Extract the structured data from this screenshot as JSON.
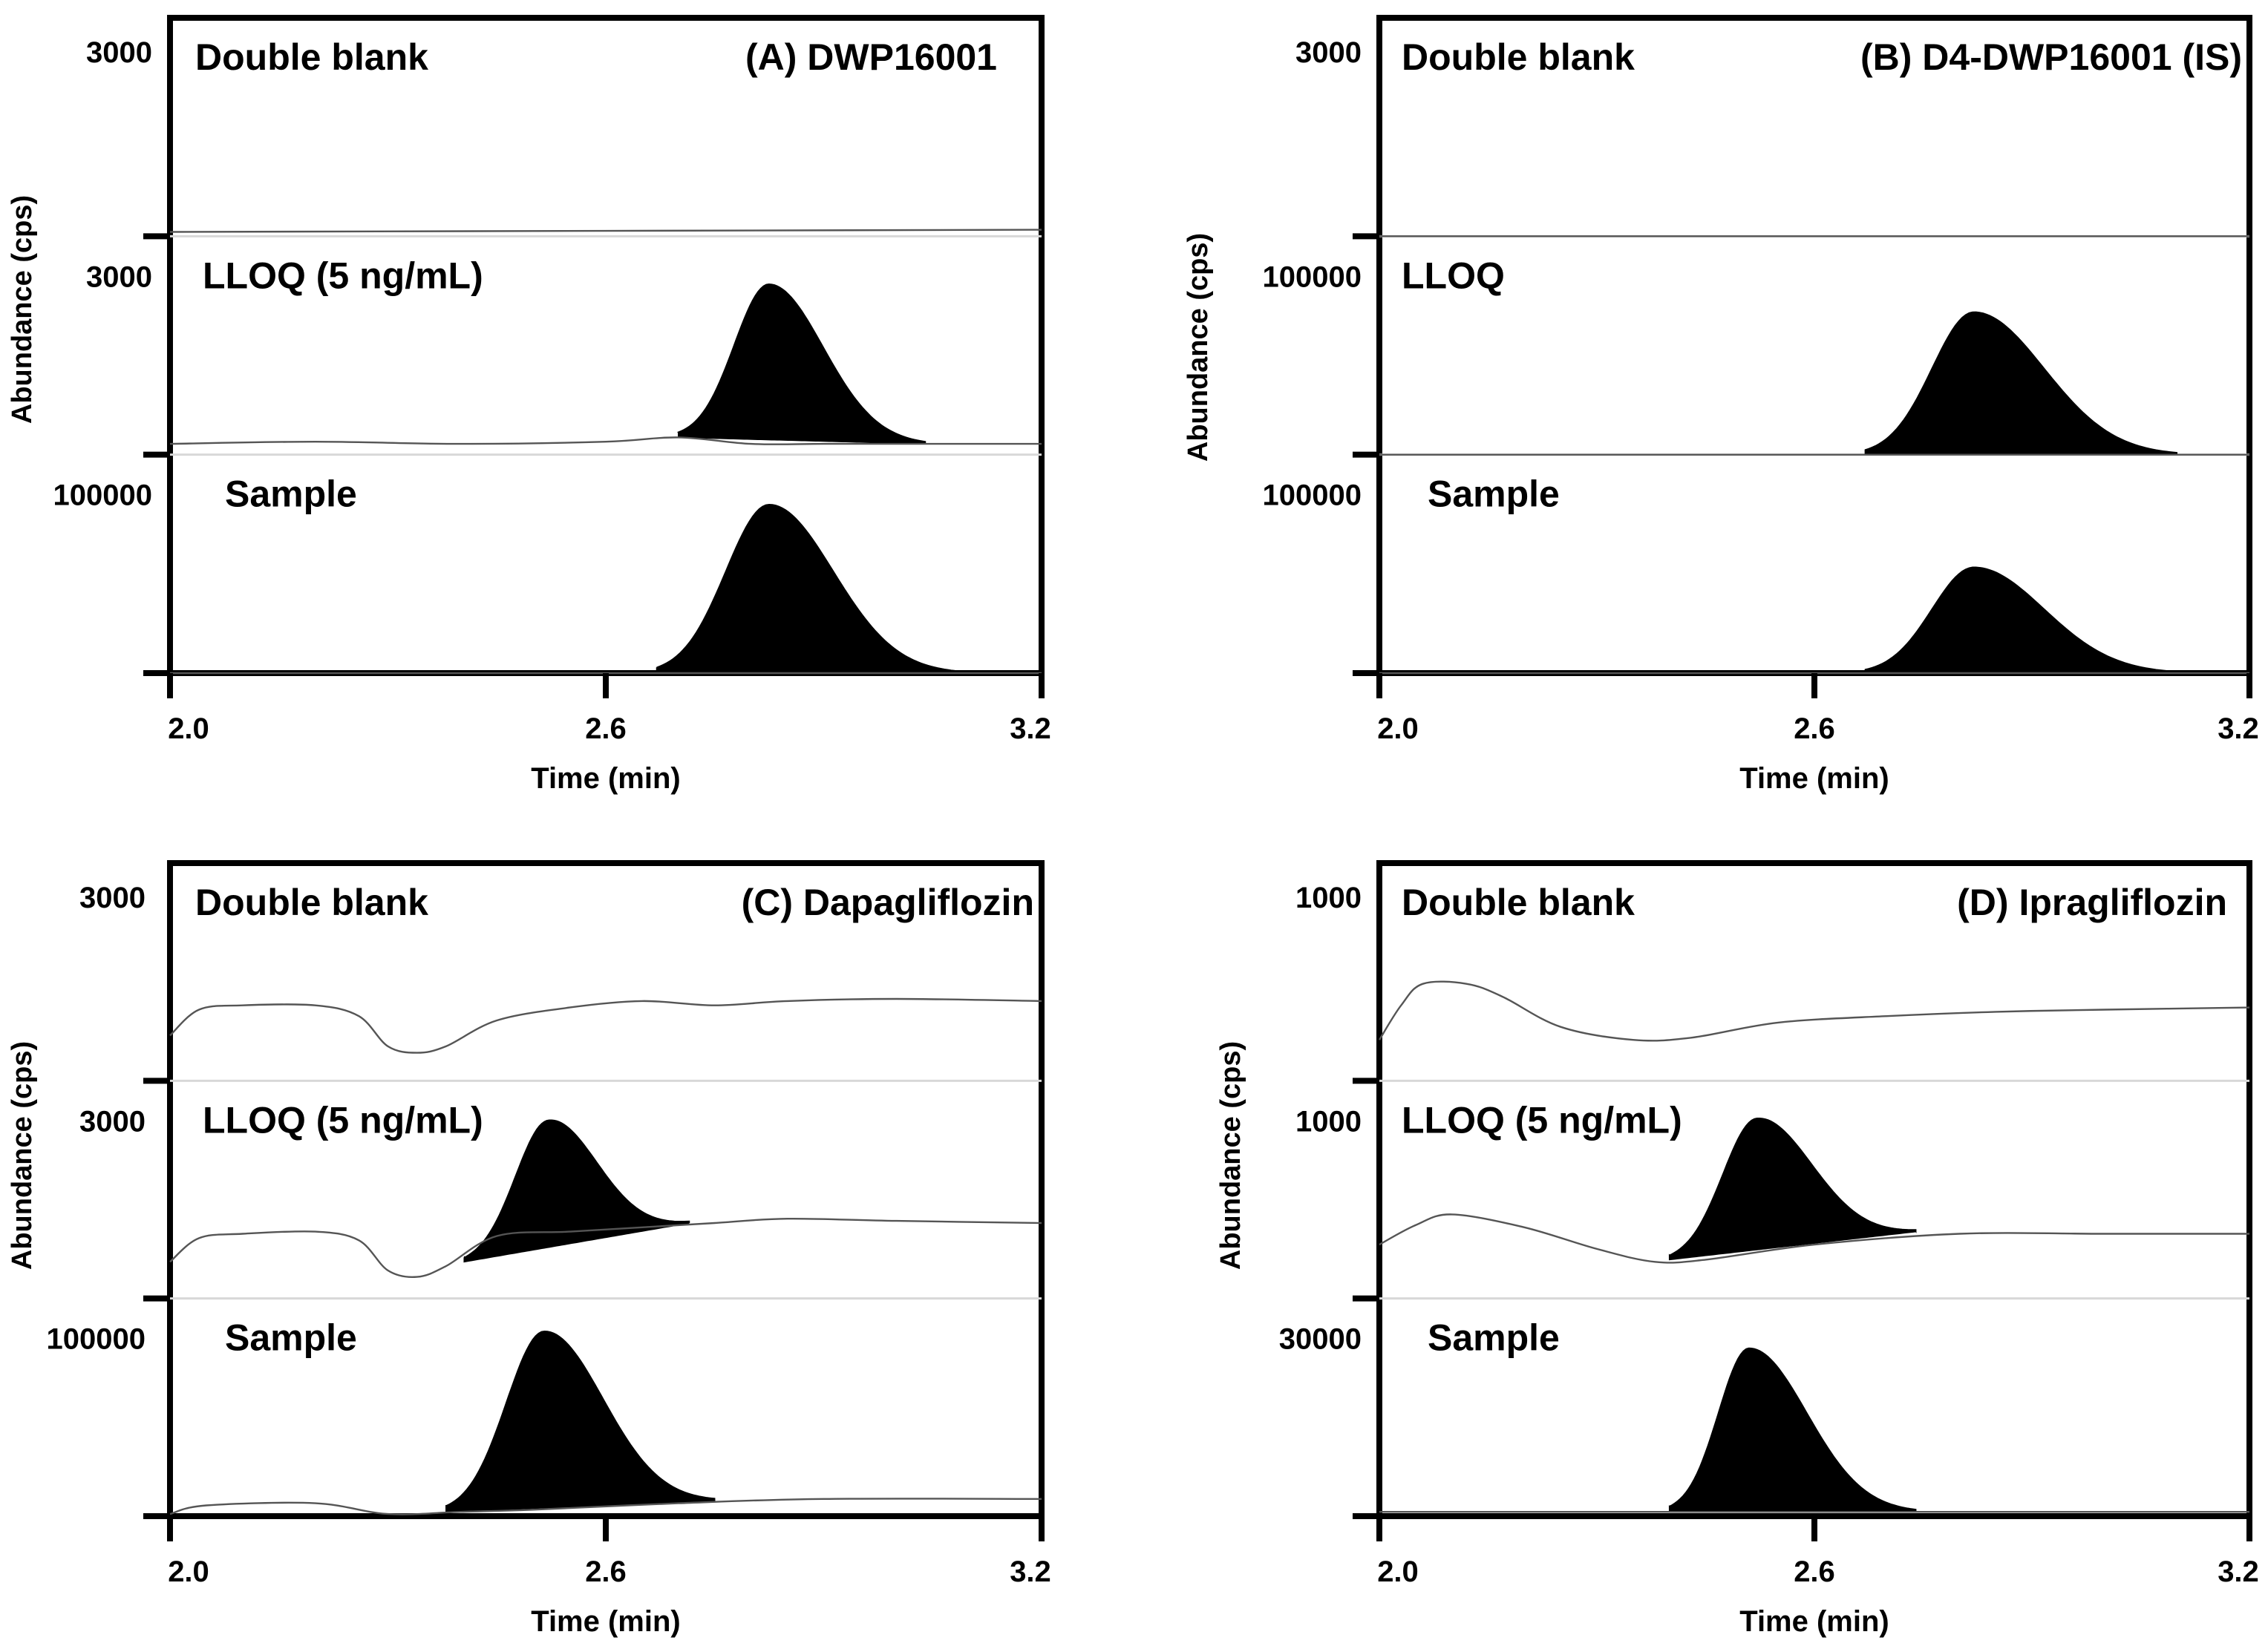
{
  "chart_data": [
    {
      "type": "line",
      "title": "(A) DWP16001",
      "xlabel": "Time (min)",
      "ylabel": "Abundance (cps)",
      "xlim": [
        2.0,
        3.2
      ],
      "xticks": [
        "2.0",
        "2.6",
        "3.2"
      ],
      "grid": false,
      "series": [
        {
          "name": "Double blank",
          "ymax_label": "3000",
          "x": [
            2.0,
            3.2
          ],
          "y": [
            0.02,
            0.03
          ],
          "peak": null
        },
        {
          "name": "LLOQ (5 ng/mL)",
          "ymax_label": "3000",
          "x": [
            2.0,
            2.2,
            2.4,
            2.6,
            2.7,
            2.8,
            2.9,
            3.0,
            3.1,
            3.2
          ],
          "y": [
            0.05,
            0.06,
            0.05,
            0.06,
            0.08,
            0.05,
            0.05,
            0.05,
            0.05,
            0.05
          ],
          "peak": {
            "start": 2.7,
            "apex": 2.825,
            "end": 3.04,
            "height": 0.72,
            "baseline": [
              0.08,
              0.05
            ]
          }
        },
        {
          "name": "Sample",
          "ymax_label": "100000",
          "x": [
            2.0,
            2.5,
            2.7,
            3.0,
            3.2
          ],
          "y": [
            0.0,
            0.0,
            0.0,
            0.0,
            0.0
          ],
          "peak": {
            "start": 2.67,
            "apex": 2.825,
            "end": 3.08,
            "height": 0.78,
            "baseline": [
              0.0,
              0.0
            ]
          }
        }
      ]
    },
    {
      "type": "line",
      "title": "(B) D4-DWP16001 (IS)",
      "xlabel": "Time (min)",
      "ylabel": "Abundance (cps)",
      "xlim": [
        2.0,
        3.2
      ],
      "xticks": [
        "2.0",
        "2.6",
        "3.2"
      ],
      "grid": false,
      "series": [
        {
          "name": "Double blank",
          "ymax_label": "3000",
          "x": [
            2.0,
            3.2
          ],
          "y": [
            0.0,
            0.0
          ],
          "peak": null
        },
        {
          "name": "LLOQ",
          "ymax_label": "100000",
          "x": [
            2.0,
            2.7,
            3.2
          ],
          "y": [
            0.0,
            0.0,
            0.0
          ],
          "peak": {
            "start": 2.67,
            "apex": 2.82,
            "end": 3.1,
            "height": 0.66,
            "baseline": [
              0.0,
              0.0
            ]
          }
        },
        {
          "name": "Sample",
          "ymax_label": "100000",
          "x": [
            2.0,
            2.7,
            3.2
          ],
          "y": [
            0.0,
            0.0,
            0.0
          ],
          "peak": {
            "start": 2.67,
            "apex": 2.82,
            "end": 3.1,
            "height": 0.49,
            "baseline": [
              0.0,
              0.0
            ]
          }
        }
      ]
    },
    {
      "type": "line",
      "title": "(C) Dapagliflozin",
      "xlabel": "Time (min)",
      "ylabel": "Abundance (cps)",
      "xlim": [
        2.0,
        3.2
      ],
      "xticks": [
        "2.0",
        "2.6",
        "3.2"
      ],
      "grid": false,
      "series": [
        {
          "name": "Double blank",
          "ymax_label": "3000",
          "x": [
            2.0,
            2.04,
            2.1,
            2.2,
            2.26,
            2.3,
            2.34,
            2.38,
            2.45,
            2.55,
            2.65,
            2.75,
            2.85,
            3.0,
            3.2
          ],
          "y": [
            0.21,
            0.33,
            0.35,
            0.35,
            0.3,
            0.16,
            0.13,
            0.16,
            0.28,
            0.34,
            0.37,
            0.35,
            0.37,
            0.38,
            0.37
          ],
          "peak": null
        },
        {
          "name": "LLOQ (5 ng/mL)",
          "ymax_label": "3000",
          "x": [
            2.0,
            2.04,
            2.1,
            2.2,
            2.26,
            2.3,
            2.34,
            2.38,
            2.45,
            2.55,
            2.65,
            2.75,
            2.85,
            3.0,
            3.2
          ],
          "y": [
            0.17,
            0.28,
            0.3,
            0.31,
            0.27,
            0.13,
            0.1,
            0.15,
            0.29,
            0.31,
            0.33,
            0.35,
            0.37,
            0.36,
            0.35
          ],
          "peak": {
            "start": 2.405,
            "apex": 2.52,
            "end": 2.715,
            "height": 0.59,
            "baseline": [
              0.17,
              0.35
            ]
          }
        },
        {
          "name": "Sample",
          "ymax_label": "100000",
          "x": [
            2.0,
            2.05,
            2.2,
            2.3,
            2.4,
            2.5,
            2.7,
            2.9,
            3.2
          ],
          "y": [
            0.01,
            0.05,
            0.06,
            0.01,
            0.02,
            0.03,
            0.06,
            0.08,
            0.08
          ],
          "peak": {
            "start": 2.38,
            "apex": 2.515,
            "end": 2.75,
            "height": 0.82,
            "baseline": [
              0.02,
              0.07
            ]
          }
        }
      ]
    },
    {
      "type": "line",
      "title": "(D) Ipragliflozin",
      "xlabel": "Time (min)",
      "ylabel": "Abundance (cps)",
      "xlim": [
        2.0,
        3.2
      ],
      "xticks": [
        "2.0",
        "2.6",
        "3.2"
      ],
      "grid": false,
      "series": [
        {
          "name": "Double blank",
          "ymax_label": "1000",
          "x": [
            2.0,
            2.03,
            2.06,
            2.12,
            2.17,
            2.25,
            2.35,
            2.43,
            2.55,
            2.7,
            2.85,
            3.0,
            3.2
          ],
          "y": [
            0.19,
            0.35,
            0.45,
            0.45,
            0.39,
            0.25,
            0.19,
            0.2,
            0.27,
            0.3,
            0.32,
            0.33,
            0.34
          ],
          "peak": null
        },
        {
          "name": "LLOQ (5 ng/mL)",
          "ymax_label": "1000",
          "x": [
            2.0,
            2.05,
            2.1,
            2.2,
            2.3,
            2.38,
            2.45,
            2.6,
            2.8,
            3.0,
            3.2
          ],
          "y": [
            0.25,
            0.34,
            0.39,
            0.33,
            0.23,
            0.17,
            0.18,
            0.25,
            0.3,
            0.3,
            0.3
          ],
          "peak": {
            "start": 2.4,
            "apex": 2.52,
            "end": 2.74,
            "height": 0.61,
            "baseline": [
              0.18,
              0.31
            ]
          }
        },
        {
          "name": "Sample",
          "ymax_label": "30000",
          "x": [
            2.0,
            2.4,
            2.8,
            3.2
          ],
          "y": [
            0.02,
            0.02,
            0.02,
            0.02
          ],
          "peak": {
            "start": 2.4,
            "apex": 2.51,
            "end": 2.74,
            "height": 0.76,
            "baseline": [
              0.02,
              0.02
            ]
          }
        }
      ]
    }
  ]
}
